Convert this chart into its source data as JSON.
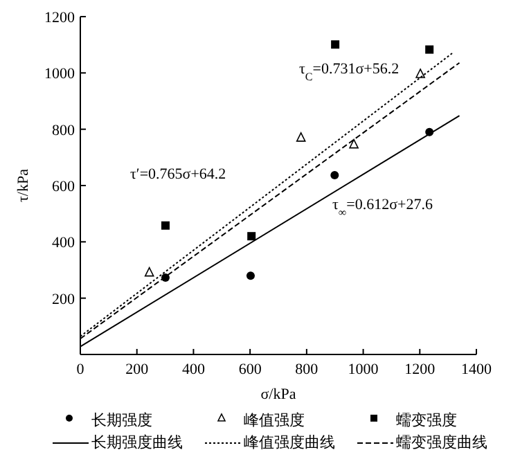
{
  "chart_data": {
    "type": "scatter",
    "xlabel": "σ/kPa",
    "ylabel": "τ/kPa",
    "xlim": [
      0,
      1400
    ],
    "xticks": [
      0,
      200,
      400,
      600,
      800,
      1000,
      1200,
      1400
    ],
    "ylim": [
      0,
      1200
    ],
    "yticks": [
      200,
      400,
      600,
      800,
      1000,
      1200
    ],
    "grid": false,
    "legend": "bottom",
    "series": [
      {
        "name": "长期强度",
        "type": "scatter",
        "marker": "circle",
        "color": "#000000",
        "x": [
          301,
          602,
          899,
          1234
        ],
        "values": [
          273,
          280,
          637,
          790
        ]
      },
      {
        "name": "峰值强度",
        "type": "scatter",
        "marker": "triangle",
        "color": "#000000",
        "x": [
          244,
          780,
          967,
          1202
        ],
        "values": [
          291,
          770,
          746,
          996
        ]
      },
      {
        "name": "蠕变强度",
        "type": "scatter",
        "marker": "square",
        "color": "#000000",
        "x": [
          301,
          605,
          901,
          1234
        ],
        "values": [
          458,
          420,
          1101,
          1083
        ]
      },
      {
        "name": "长期强度曲线",
        "type": "line",
        "line_style": "solid",
        "color": "#000000",
        "x": [
          0,
          1340
        ],
        "values": [
          28,
          848
        ]
      },
      {
        "name": "峰值强度曲线",
        "type": "line",
        "line_style": "dotted",
        "color": "#000000",
        "x": [
          0,
          1320
        ],
        "values": [
          64,
          1074
        ]
      },
      {
        "name": "蠕变强度曲线",
        "type": "line",
        "line_style": "dashed",
        "color": "#000000",
        "x": [
          0,
          1340
        ],
        "values": [
          56,
          1036
        ]
      }
    ],
    "annotations": [
      "τ$_{C}$=0.731σ+56.2",
      "τ′=0.765σ+64.2",
      "τ$_{∞}$=0.612σ+27.6"
    ]
  }
}
